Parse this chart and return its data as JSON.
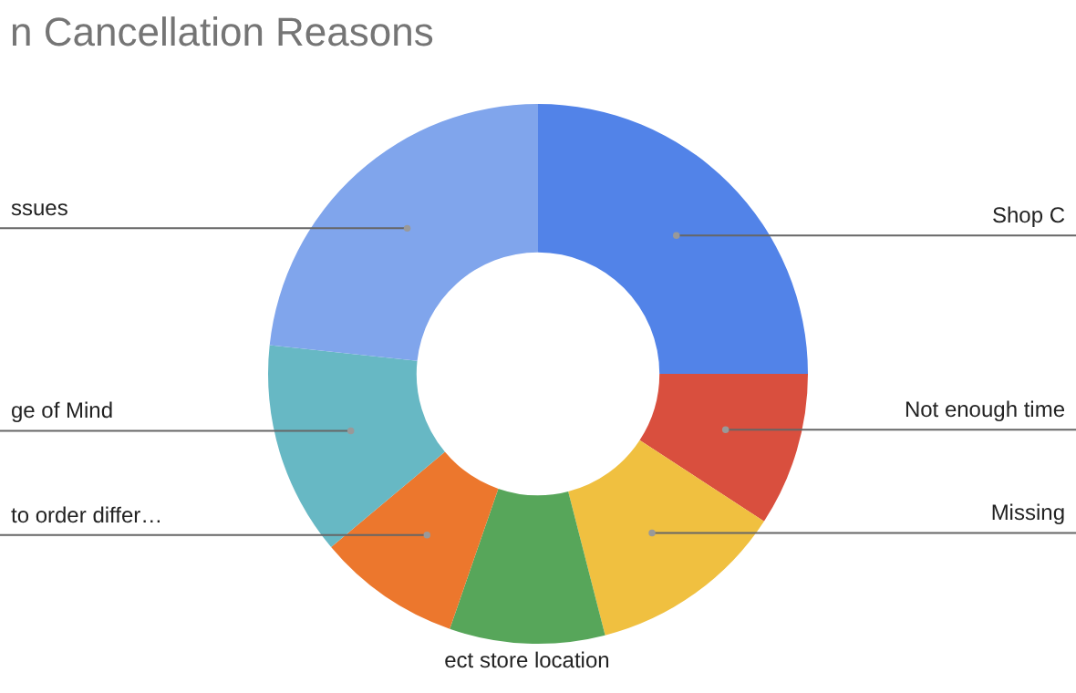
{
  "chart_data": {
    "type": "donut",
    "title": "n Cancellation Reasons",
    "categories": [
      "Shop C",
      "Not enough time",
      "Missing",
      "ect store location",
      "to order differ…",
      "ge of Mind",
      "ssues"
    ],
    "values": [
      25,
      9.2,
      11.8,
      9.3,
      8.6,
      12.8,
      23.3
    ],
    "colors": [
      "#5283e8",
      "#d94f3e",
      "#f0c040",
      "#57a65a",
      "#ec772d",
      "#67b8c4",
      "#80a5ec"
    ],
    "legend": false
  }
}
